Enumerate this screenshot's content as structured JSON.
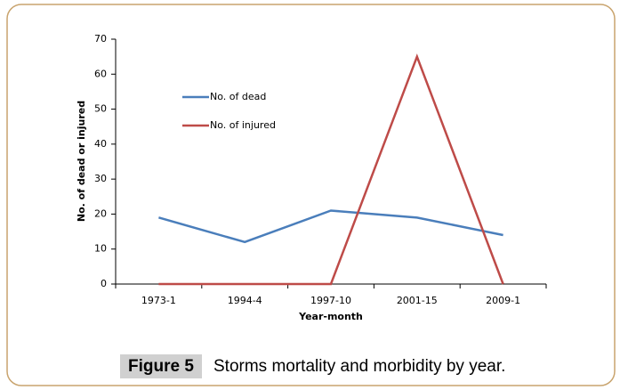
{
  "chart_data": {
    "type": "line",
    "ylabel": "No. of dead or injured",
    "xlabel": "Year-month",
    "categories": [
      "1973-1",
      "1994-4",
      "1997-10",
      "2001-15",
      "2009-1"
    ],
    "series": [
      {
        "name": "No. of dead",
        "color": "#4a7ebb",
        "values": [
          19,
          12,
          21,
          19,
          14
        ]
      },
      {
        "name": "No. of injured",
        "color": "#be4b48",
        "values": [
          0,
          0,
          0,
          65,
          0
        ]
      }
    ],
    "ylim": [
      0,
      70
    ],
    "yticks": [
      0,
      10,
      20,
      30,
      40,
      50,
      60,
      70
    ]
  },
  "figure": {
    "label": "Figure 5",
    "caption": "Storms mortality and morbidity by year."
  }
}
